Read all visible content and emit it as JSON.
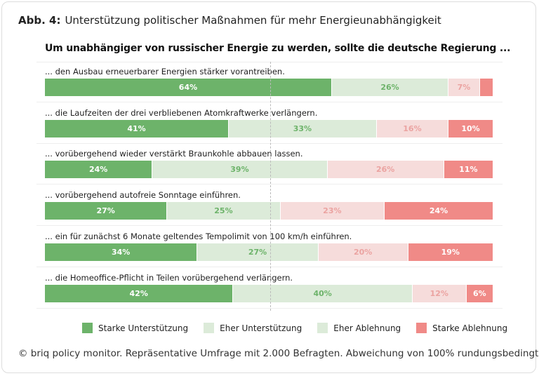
{
  "title": {
    "prefix": "Abb. 4:",
    "text": "Unterstützung politischer Maßnahmen für mehr Energieunabhängigkeit"
  },
  "chart_data": {
    "type": "bar",
    "orientation": "horizontal-stacked-100",
    "subtitle": "Um unabhängiger von russischer Energie zu werden, sollte die deutsche Regierung ...",
    "series": [
      {
        "name": "Starke Unterstützung",
        "color": "#6db36a",
        "text_color": "#ffffff"
      },
      {
        "name": "Eher Unterstützung",
        "color": "#dcebd9",
        "text_color": "#6db36a"
      },
      {
        "name": "Eher Ablehnung",
        "color": "#f6dcdb",
        "legend_color": "#dcebd9",
        "text_color": "#eba3a1"
      },
      {
        "name": "Starke Ablehnung",
        "color": "#f08a87",
        "text_color": "#ffffff"
      }
    ],
    "categories": [
      "... den Ausbau erneuerbarer Energien stärker vorantreiben.",
      "... die Laufzeiten der drei verbliebenen Atomkraftwerke verlängern.",
      "... vorübergehend wieder verstärkt Braunkohle abbauen lassen.",
      "... vorübergehend autofreie Sonntage einführen.",
      "... ein für zunächst 6 Monate geltendes Tempolimit von 100 km/h einführen.",
      "... die Homeoffice-Pflicht in Teilen vorübergehend verlängern."
    ],
    "values": [
      [
        64,
        26,
        7,
        3
      ],
      [
        41,
        33,
        16,
        10
      ],
      [
        24,
        39,
        26,
        11
      ],
      [
        27,
        25,
        23,
        24
      ],
      [
        34,
        27,
        20,
        19
      ],
      [
        42,
        40,
        12,
        6
      ]
    ],
    "labels": [
      [
        "64%",
        "26%",
        "7%",
        ""
      ],
      [
        "41%",
        "33%",
        "16%",
        "10%"
      ],
      [
        "24%",
        "39%",
        "26%",
        "11%"
      ],
      [
        "27%",
        "25%",
        "23%",
        "24%"
      ],
      [
        "34%",
        "27%",
        "20%",
        "19%"
      ],
      [
        "42%",
        "40%",
        "12%",
        "6%"
      ]
    ],
    "legend_position": "bottom",
    "grid": false
  },
  "footer": "© briq policy monitor. Repräsentative Umfrage mit 2.000 Befragten. Abweichung von 100% rundungsbedingt."
}
